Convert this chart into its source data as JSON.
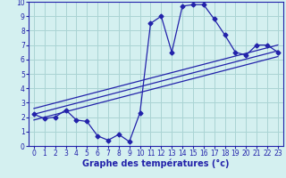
{
  "x": [
    0,
    1,
    2,
    3,
    4,
    5,
    6,
    7,
    8,
    9,
    10,
    11,
    12,
    13,
    14,
    15,
    16,
    17,
    18,
    19,
    20,
    21,
    22,
    23
  ],
  "y_main": [
    2.2,
    1.9,
    2.0,
    2.5,
    1.8,
    1.7,
    0.7,
    0.4,
    0.8,
    0.3,
    2.3,
    8.5,
    9.0,
    6.5,
    9.7,
    9.8,
    9.8,
    8.8,
    7.7,
    6.5,
    6.3,
    7.0,
    7.0,
    6.5
  ],
  "trend_lines": [
    {
      "x0": 0,
      "y0": 2.2,
      "x1": 23,
      "y1": 6.6
    },
    {
      "x0": 0,
      "y0": 2.6,
      "x1": 23,
      "y1": 7.0
    },
    {
      "x0": 0,
      "y0": 1.8,
      "x1": 23,
      "y1": 6.2
    }
  ],
  "line_color": "#2222aa",
  "marker": "D",
  "markersize": 2.5,
  "bg_color": "#d4f0f0",
  "grid_color": "#aad4d4",
  "xlabel": "Graphe des températures (°c)",
  "xlabel_fontsize": 7,
  "xlabel_fontweight": "bold",
  "xlim": [
    -0.5,
    23.5
  ],
  "ylim": [
    0,
    10
  ],
  "yticks": [
    0,
    1,
    2,
    3,
    4,
    5,
    6,
    7,
    8,
    9,
    10
  ],
  "xticks": [
    0,
    1,
    2,
    3,
    4,
    5,
    6,
    7,
    8,
    9,
    10,
    11,
    12,
    13,
    14,
    15,
    16,
    17,
    18,
    19,
    20,
    21,
    22,
    23
  ],
  "tick_fontsize": 5.5
}
